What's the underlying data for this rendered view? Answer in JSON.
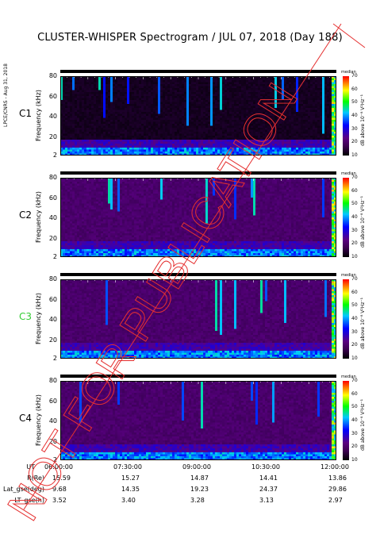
{
  "title": "CLUSTER-WHISPER Spectrogram / JUL 07, 2018 (Day 188)",
  "side_note": "LPCE/CNRS - Aug 31, 2018",
  "stamp_text": "NOT FOR PUBLICATION",
  "chart_data": {
    "type": "heatmap",
    "panels": [
      {
        "name": "C1",
        "color": "#000000"
      },
      {
        "name": "C2",
        "color": "#000000"
      },
      {
        "name": "C3",
        "color": "#33cc33"
      },
      {
        "name": "C4",
        "color": "#000000"
      }
    ],
    "ylabel": "Frequency (kHz)",
    "yticks": [
      "80",
      "60",
      "40",
      "20",
      "2"
    ],
    "ylim": [
      2,
      80
    ],
    "colorbar": {
      "label": "dB above 10⁻⁸ V²Hz⁻¹",
      "ticks": [
        "70",
        "60",
        "50",
        "40",
        "30",
        "20",
        "10"
      ],
      "range": [
        10,
        70
      ],
      "header": "median"
    },
    "time_axis": {
      "ut_label": "UT",
      "ticks": [
        "06:00:00",
        "07:30:00",
        "09:00:00",
        "10:30:00",
        "12:00:00"
      ]
    },
    "orbit_rows": [
      {
        "label": "R(Re)",
        "values": [
          "15.59",
          "15.27",
          "14.87",
          "14.41",
          "13.86"
        ]
      },
      {
        "label": "Lat_gse(deg)",
        "values": [
          "9.68",
          "14.35",
          "19.23",
          "24.37",
          "29.86"
        ]
      },
      {
        "label": "LT_gse(h)",
        "values": [
          "3.52",
          "3.40",
          "3.28",
          "3.13",
          "2.97"
        ]
      }
    ]
  }
}
